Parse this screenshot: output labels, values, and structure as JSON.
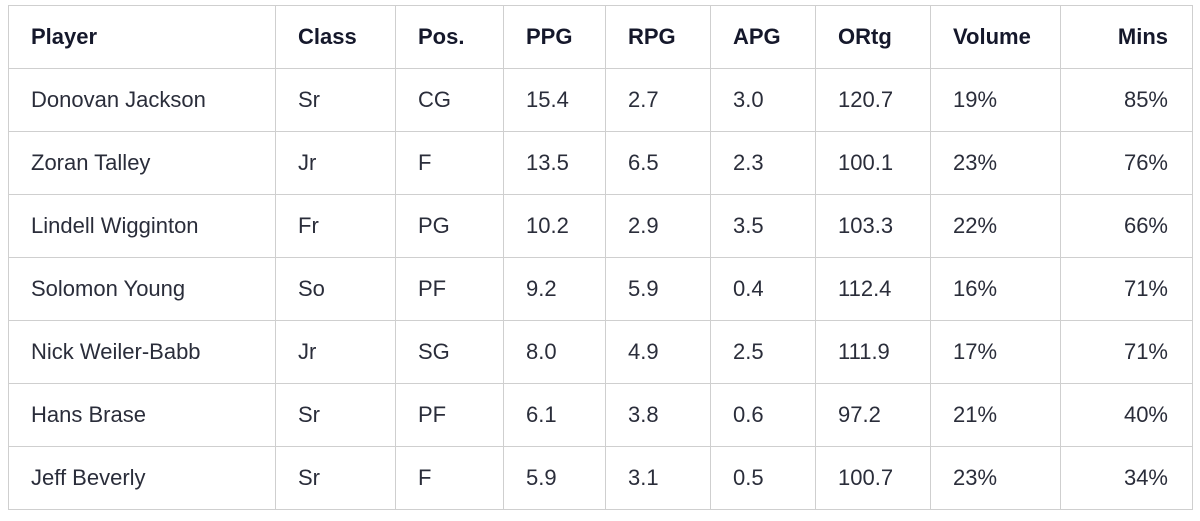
{
  "table": {
    "headers": [
      "Player",
      "Class",
      "Pos.",
      "PPG",
      "RPG",
      "APG",
      "ORtg",
      "Volume",
      "Mins"
    ],
    "rows": [
      [
        "Donovan Jackson",
        "Sr",
        "CG",
        "15.4",
        "2.7",
        "3.0",
        "120.7",
        "19%",
        "85%"
      ],
      [
        "Zoran Talley",
        "Jr",
        "F",
        "13.5",
        "6.5",
        "2.3",
        "100.1",
        "23%",
        "76%"
      ],
      [
        "Lindell Wigginton",
        "Fr",
        "PG",
        "10.2",
        "2.9",
        "3.5",
        "103.3",
        "22%",
        "66%"
      ],
      [
        "Solomon Young",
        "So",
        "PF",
        "9.2",
        "5.9",
        "0.4",
        "112.4",
        "16%",
        "71%"
      ],
      [
        "Nick Weiler-Babb",
        "Jr",
        "SG",
        "8.0",
        "4.9",
        "2.5",
        "111.9",
        "17%",
        "71%"
      ],
      [
        "Hans Brase",
        "Sr",
        "PF",
        "6.1",
        "3.8",
        "0.6",
        "97.2",
        "21%",
        "40%"
      ],
      [
        "Jeff Beverly",
        "Sr",
        "F",
        "5.9",
        "3.1",
        "0.5",
        "100.7",
        "23%",
        "34%"
      ]
    ]
  }
}
